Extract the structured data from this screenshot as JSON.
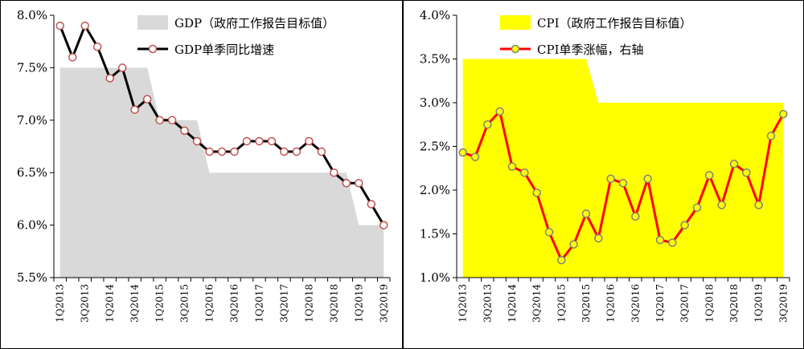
{
  "chart_data": [
    {
      "type": "line",
      "title": "",
      "xlabel": "",
      "ylabel": "",
      "ylim": [
        5.5,
        8.0
      ],
      "y_ticks": [
        "5.5%",
        "6.0%",
        "6.5%",
        "7.0%",
        "7.5%",
        "8.0%"
      ],
      "y_tick_values": [
        5.5,
        6.0,
        6.5,
        7.0,
        7.5,
        8.0
      ],
      "x_tick_labels": [
        "1Q2013",
        "3Q2013",
        "1Q2014",
        "3Q2014",
        "1Q2015",
        "3Q2015",
        "1Q2016",
        "3Q2016",
        "1Q2017",
        "3Q2017",
        "1Q2018",
        "3Q2018",
        "1Q2019",
        "3Q2019"
      ],
      "categories": [
        "1Q2013",
        "2Q2013",
        "3Q2013",
        "4Q2013",
        "1Q2014",
        "2Q2014",
        "3Q2014",
        "4Q2014",
        "1Q2015",
        "2Q2015",
        "3Q2015",
        "4Q2015",
        "1Q2016",
        "2Q2016",
        "3Q2016",
        "4Q2016",
        "1Q2017",
        "2Q2017",
        "3Q2017",
        "4Q2017",
        "1Q2018",
        "2Q2018",
        "3Q2018",
        "4Q2018",
        "1Q2019",
        "2Q2019",
        "3Q2019"
      ],
      "grid": false,
      "legend_position": "top-right",
      "series": [
        {
          "name": "GDP（政府工作报告目标值）",
          "kind": "area",
          "color": "#d9d9d9",
          "values": [
            7.5,
            7.5,
            7.5,
            7.5,
            7.5,
            7.5,
            7.5,
            7.5,
            7.0,
            7.0,
            7.0,
            7.0,
            6.5,
            6.5,
            6.5,
            6.5,
            6.5,
            6.5,
            6.5,
            6.5,
            6.5,
            6.5,
            6.5,
            6.5,
            6.0,
            6.0,
            6.0
          ]
        },
        {
          "name": "GDP单季同比增速",
          "kind": "line",
          "color": "#000000",
          "marker_fill": "#ffffff",
          "marker_edge": "#c0504d",
          "values": [
            7.9,
            7.6,
            7.9,
            7.7,
            7.4,
            7.5,
            7.1,
            7.2,
            7.0,
            7.0,
            6.9,
            6.8,
            6.7,
            6.7,
            6.7,
            6.8,
            6.8,
            6.8,
            6.7,
            6.7,
            6.8,
            6.7,
            6.5,
            6.4,
            6.4,
            6.2,
            6.0
          ]
        }
      ]
    },
    {
      "type": "line",
      "title": "",
      "xlabel": "",
      "ylabel": "",
      "ylim": [
        1.0,
        4.0
      ],
      "y_ticks": [
        "1.0%",
        "1.5%",
        "2.0%",
        "2.5%",
        "3.0%",
        "3.5%",
        "4.0%"
      ],
      "y_tick_values": [
        1.0,
        1.5,
        2.0,
        2.5,
        3.0,
        3.5,
        4.0
      ],
      "x_tick_labels": [
        "1Q2013",
        "3Q2013",
        "1Q2014",
        "3Q2014",
        "1Q2015",
        "3Q2015",
        "1Q2016",
        "3Q2016",
        "1Q2017",
        "3Q2017",
        "1Q2018",
        "3Q2018",
        "1Q2019",
        "3Q2019"
      ],
      "categories": [
        "1Q2013",
        "2Q2013",
        "3Q2013",
        "4Q2013",
        "1Q2014",
        "2Q2014",
        "3Q2014",
        "4Q2014",
        "1Q2015",
        "2Q2015",
        "3Q2015",
        "4Q2015",
        "1Q2016",
        "2Q2016",
        "3Q2016",
        "4Q2016",
        "1Q2017",
        "2Q2017",
        "3Q2017",
        "4Q2017",
        "1Q2018",
        "2Q2018",
        "3Q2018",
        "4Q2018",
        "1Q2019",
        "2Q2019",
        "3Q2019"
      ],
      "grid": false,
      "legend_position": "top-right",
      "series": [
        {
          "name": "CPI（政府工作报告目标值）",
          "kind": "area",
          "color": "#ffff00",
          "values": [
            3.5,
            3.5,
            3.5,
            3.5,
            3.5,
            3.5,
            3.5,
            3.5,
            3.5,
            3.5,
            3.5,
            3.0,
            3.0,
            3.0,
            3.0,
            3.0,
            3.0,
            3.0,
            3.0,
            3.0,
            3.0,
            3.0,
            3.0,
            3.0,
            3.0,
            3.0,
            3.0
          ]
        },
        {
          "name": "CPI单季涨幅，右轴",
          "kind": "line",
          "color": "#ff0000",
          "marker_fill": "#ffff00",
          "marker_edge": "#808080",
          "values": [
            2.43,
            2.38,
            2.75,
            2.9,
            2.27,
            2.2,
            1.97,
            1.52,
            1.2,
            1.38,
            1.73,
            1.45,
            2.13,
            2.08,
            1.7,
            2.13,
            1.43,
            1.4,
            1.6,
            1.8,
            2.17,
            1.83,
            2.3,
            2.2,
            1.83,
            2.62,
            2.87
          ]
        }
      ]
    }
  ]
}
